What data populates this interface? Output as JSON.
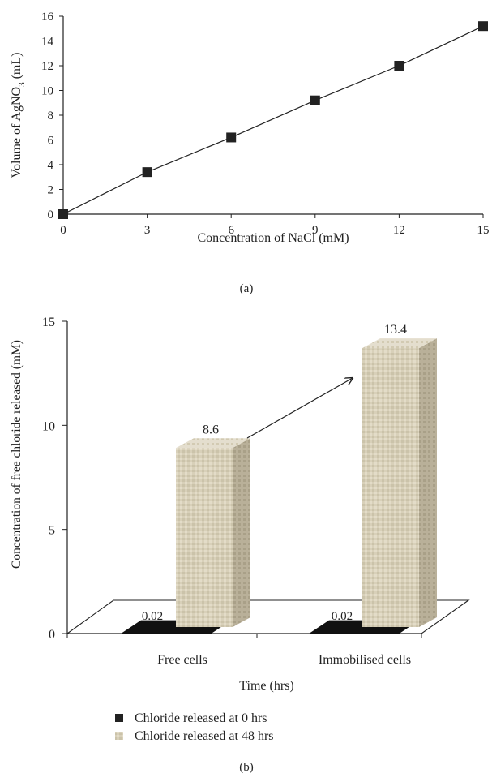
{
  "chart_data": [
    {
      "type": "line",
      "panel_label": "(a)",
      "xlabel": "Concentration of NaCl (mM)",
      "ylabel_main": "Volume of AgNO",
      "ylabel_sub": "3",
      "ylabel_unit": " (mL)",
      "x_ticks": [
        "0",
        "3",
        "6",
        "9",
        "12",
        "15"
      ],
      "y_ticks": [
        "0",
        "2",
        "4",
        "6",
        "8",
        "10",
        "12",
        "14",
        "16"
      ],
      "xlim": [
        0,
        15
      ],
      "ylim": [
        0,
        16
      ],
      "x": [
        0,
        3,
        6,
        9,
        12,
        15
      ],
      "y": [
        0,
        3.4,
        6.2,
        9.2,
        12.0,
        15.2
      ],
      "marker": "square",
      "line_color": "#222222"
    },
    {
      "type": "bar",
      "panel_label": "(b)",
      "xlabel": "Time (hrs)",
      "ylabel": "Concentration of free chloride released (mM)",
      "categories": [
        "Free cells",
        "Immobilised cells"
      ],
      "y_ticks": [
        "0",
        "5",
        "10",
        "15"
      ],
      "ylim": [
        0,
        15
      ],
      "series": [
        {
          "name": "Chloride released at 0 hrs",
          "values": [
            0.02,
            0.02
          ],
          "labels": [
            "0.02",
            "0.02"
          ],
          "color": "#111111"
        },
        {
          "name": "Chloride released at 48 hrs",
          "values": [
            8.6,
            13.4
          ],
          "labels": [
            "8.6",
            "13.4"
          ],
          "color": "#d9d2bd"
        }
      ]
    }
  ]
}
